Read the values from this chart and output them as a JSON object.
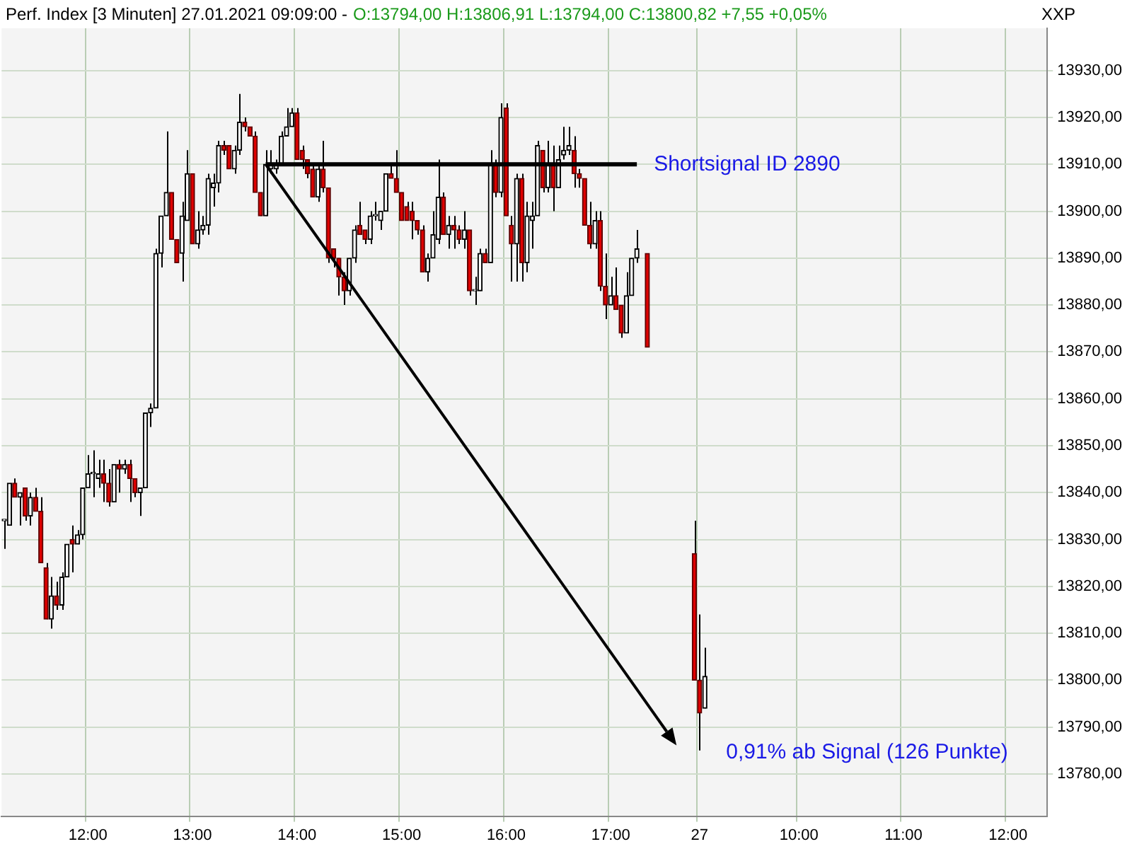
{
  "chart_data": {
    "type": "candlestick",
    "title": "Perf. Index [3 Minuten] 27.01.2021 09:09:00 -",
    "subtitle": "O:13794,00 H:13806,91 L:13794,00 C:13800,82 +7,55 +0,05%",
    "ylabel": "XXP",
    "categories": [
      null,
      null,
      null,
      null,
      null,
      null,
      null,
      null,
      null,
      null,
      null,
      null,
      null,
      null,
      null,
      null,
      "12:00",
      null,
      null,
      null,
      null,
      null,
      null,
      null,
      null,
      null,
      null,
      null,
      null,
      null,
      null,
      null,
      null,
      null,
      null,
      null,
      "13:00",
      null,
      null,
      null,
      null,
      null,
      null,
      null,
      null,
      null,
      null,
      null,
      null,
      null,
      null,
      null,
      null,
      null,
      null,
      null,
      "14:00",
      null,
      null,
      null,
      null,
      null,
      null,
      null,
      null,
      null,
      null,
      null,
      null,
      null,
      null,
      null,
      null,
      null,
      null,
      null,
      "15:00",
      null,
      null,
      null,
      null,
      null,
      null,
      null,
      null,
      null,
      null,
      null,
      null,
      null,
      null,
      null,
      null,
      null,
      null,
      null,
      "16:00",
      null,
      null,
      null,
      null,
      null,
      null,
      null,
      null,
      null,
      null,
      null,
      null,
      null,
      null,
      null,
      null,
      null,
      null,
      null,
      "17:00",
      null,
      null,
      null,
      null,
      null,
      null,
      null,
      null,
      null,
      null,
      null,
      null,
      null,
      null,
      null,
      null,
      "27",
      null,
      null,
      null,
      null,
      null,
      null,
      null,
      null,
      null,
      null,
      null,
      null,
      null,
      null,
      null,
      null,
      null,
      null,
      "10:00",
      null,
      null,
      null,
      null,
      null,
      null,
      null,
      null,
      null,
      null,
      null,
      null,
      null,
      null,
      null,
      null,
      null,
      null,
      null,
      "11:00",
      null,
      null,
      null,
      null,
      null,
      null,
      null,
      null,
      null,
      null,
      null,
      null,
      null,
      null,
      null,
      null,
      null,
      null,
      null,
      "12:00",
      null,
      null,
      null,
      null,
      null,
      null,
      null
    ],
    "ohlc": [
      [
        13834,
        13834,
        13828,
        13834
      ],
      [
        13833,
        13842,
        13833,
        13842
      ],
      [
        13842,
        13843,
        13839,
        13839
      ],
      [
        13839,
        13840,
        13833,
        13840
      ],
      [
        13841,
        13841,
        13834,
        13835
      ],
      [
        13835,
        13840,
        13833,
        13839
      ],
      [
        13839,
        13841,
        13836,
        13836
      ],
      [
        13836,
        13839,
        13825,
        13825
      ],
      [
        13824,
        13825,
        13813,
        13813
      ],
      [
        13813,
        13822,
        13811,
        13818
      ],
      [
        13818,
        13821,
        13815,
        13816
      ],
      [
        13816,
        13823,
        13815,
        13822
      ],
      [
        13822,
        13829,
        13822,
        13829
      ],
      [
        13830,
        13833,
        13823,
        13829
      ],
      [
        13829,
        13832,
        13829,
        13831
      ],
      [
        13831,
        13841,
        13830,
        13841
      ],
      [
        13841,
        13848,
        13841,
        13844
      ],
      [
        13844,
        13849,
        13839,
        13844
      ],
      [
        13843,
        13847,
        13841,
        13844
      ],
      [
        13844,
        13847,
        13838,
        13842
      ],
      [
        13842,
        13845,
        13837,
        13838
      ],
      [
        13838,
        13846,
        13838,
        13846
      ],
      [
        13846,
        13847,
        13840,
        13845
      ],
      [
        13845,
        13847,
        13844,
        13846
      ],
      [
        13846,
        13847,
        13838,
        13843
      ],
      [
        13843,
        13843,
        13839,
        13840
      ],
      [
        13840,
        13841,
        13835,
        13841
      ],
      [
        13841,
        13857,
        13841,
        13857
      ],
      [
        13857,
        13859,
        13854,
        13858
      ],
      [
        13858,
        13892,
        13858,
        13891
      ],
      [
        13891,
        13899,
        13888,
        13899
      ],
      [
        13899,
        13917,
        13899,
        13904
      ],
      [
        13904,
        13904,
        13894,
        13894
      ],
      [
        13894,
        13894,
        13889,
        13889
      ],
      [
        13891,
        13902,
        13885,
        13899
      ],
      [
        13898,
        13913,
        13898,
        13908
      ],
      [
        13908,
        13908,
        13893,
        13893
      ],
      [
        13893,
        13900,
        13892,
        13896
      ],
      [
        13896,
        13899,
        13895,
        13897
      ],
      [
        13897,
        13908,
        13895,
        13907
      ],
      [
        13905,
        13908,
        13901,
        13906
      ],
      [
        13906,
        13915,
        13904,
        13914
      ],
      [
        13914,
        13915,
        13912,
        13913
      ],
      [
        13914,
        13914,
        13909,
        13909
      ],
      [
        13909,
        13914,
        13908,
        13913
      ],
      [
        13913,
        13925,
        13912,
        13919
      ],
      [
        13919,
        13920,
        13917,
        13918
      ],
      [
        13918,
        13918,
        13916,
        13916
      ],
      [
        13916,
        13917,
        13904,
        13904
      ],
      [
        13904,
        13904,
        13899,
        13899
      ],
      [
        13899,
        13913,
        13899,
        13910
      ],
      [
        13909,
        13913,
        13908,
        13910
      ],
      [
        13909,
        13911,
        13908,
        13910
      ],
      [
        13910,
        13917,
        13910,
        13916
      ],
      [
        13916,
        13922,
        13916,
        13918
      ],
      [
        13918,
        13922,
        13918,
        13921
      ],
      [
        13921,
        13922,
        13911,
        13911
      ],
      [
        13913,
        13914,
        13909,
        13911
      ],
      [
        13911,
        13911,
        13907,
        13908
      ],
      [
        13909,
        13910,
        13903,
        13903
      ],
      [
        13903,
        13910,
        13902,
        13909
      ],
      [
        13909,
        13915,
        13904,
        13905
      ],
      [
        13905,
        13905,
        13889,
        13890
      ],
      [
        13892,
        13892,
        13888,
        13890
      ],
      [
        13890,
        13890,
        13882,
        13886
      ],
      [
        13886,
        13887,
        13880,
        13883
      ],
      [
        13883,
        13890,
        13882,
        13890
      ],
      [
        13890,
        13897,
        13889,
        13896
      ],
      [
        13897,
        13902,
        13895,
        13895
      ],
      [
        13896,
        13896,
        13893,
        13894
      ],
      [
        13894,
        13900,
        13893,
        13899
      ],
      [
        13899,
        13902,
        13898,
        13899
      ],
      [
        13898,
        13900,
        13896,
        13900
      ],
      [
        13900,
        13908,
        13900,
        13908
      ],
      [
        13908,
        13910,
        13907,
        13907
      ],
      [
        13907,
        13913,
        13904,
        13904
      ],
      [
        13904,
        13904,
        13898,
        13898
      ],
      [
        13901,
        13902,
        13898,
        13898
      ],
      [
        13900,
        13902,
        13894,
        13898
      ],
      [
        13898,
        13898,
        13895,
        13896
      ],
      [
        13896,
        13897,
        13887,
        13887
      ],
      [
        13887,
        13891,
        13885,
        13890
      ],
      [
        13890,
        13900,
        13890,
        13895
      ],
      [
        13894,
        13911,
        13893,
        13903
      ],
      [
        13903,
        13904,
        13895,
        13895
      ],
      [
        13895,
        13899,
        13892,
        13897
      ],
      [
        13897,
        13899,
        13892,
        13896
      ],
      [
        13896,
        13897,
        13893,
        13894
      ],
      [
        13894,
        13900,
        13892,
        13896
      ],
      [
        13896,
        13896,
        13882,
        13883
      ],
      [
        13883,
        13886,
        13880,
        13883
      ],
      [
        13883,
        13892,
        13883,
        13891
      ],
      [
        13891,
        13892,
        13889,
        13889
      ],
      [
        13889,
        13913,
        13889,
        13910
      ],
      [
        13910,
        13911,
        13903,
        13904
      ],
      [
        13904,
        13923,
        13903,
        13920
      ],
      [
        13922,
        13923,
        13899,
        13899
      ],
      [
        13897,
        13899,
        13885,
        13893
      ],
      [
        13893,
        13908,
        13885,
        13907
      ],
      [
        13907,
        13908,
        13885,
        13889
      ],
      [
        13889,
        13902,
        13887,
        13899
      ],
      [
        13898,
        13902,
        13892,
        13899
      ],
      [
        13899,
        13915,
        13899,
        13914
      ],
      [
        13913,
        13913,
        13904,
        13905
      ],
      [
        13905,
        13915,
        13904,
        13910
      ],
      [
        13910,
        13914,
        13900,
        13905
      ],
      [
        13905,
        13914,
        13905,
        13911
      ],
      [
        13912,
        13918,
        13911,
        13913
      ],
      [
        13913,
        13918,
        13912,
        13914
      ],
      [
        13913,
        13916,
        13905,
        13908
      ],
      [
        13908,
        13909,
        13905,
        13907
      ],
      [
        13907,
        13907,
        13897,
        13897
      ],
      [
        13897,
        13902,
        13892,
        13893
      ],
      [
        13893,
        13900,
        13892,
        13898
      ],
      [
        13898,
        13900,
        13883,
        13884
      ],
      [
        13884,
        13891,
        13877,
        13880
      ],
      [
        13880,
        13886,
        13880,
        13882
      ],
      [
        13882,
        13888,
        13879,
        13879
      ],
      [
        13880,
        13880,
        13873,
        13874
      ],
      [
        13874,
        13887,
        13874,
        13882
      ],
      [
        13882,
        13890,
        13882,
        13890
      ],
      [
        13890,
        13896,
        13889,
        13892
      ],
      null,
      [
        13891,
        13891,
        13871,
        13871
      ],
      null,
      null,
      null,
      null,
      null,
      null,
      null,
      null,
      [
        13827,
        13834,
        13800,
        13800
      ],
      [
        13800,
        13814,
        13785,
        13793
      ],
      [
        13794,
        13806.91,
        13794,
        13800.82
      ],
      null,
      null,
      null,
      null,
      null,
      null,
      null,
      null,
      null,
      null,
      null,
      null,
      null,
      null,
      null,
      null,
      null,
      null,
      null,
      null,
      null,
      null,
      null,
      null,
      null,
      null,
      null,
      null,
      null,
      null,
      null,
      null,
      null,
      null,
      null,
      null,
      null,
      null,
      null,
      null,
      null,
      null,
      null,
      null,
      null,
      null,
      null,
      null,
      null,
      null,
      null,
      null,
      null,
      null,
      null,
      null,
      null,
      null,
      null,
      null,
      null,
      null,
      null,
      null,
      null
    ],
    "series": [
      {
        "type": "line",
        "name": "Shortsignal ID 2890",
        "color": "#000000",
        "values": [
          null,
          null,
          null,
          null,
          null,
          null,
          null,
          null,
          null,
          null,
          null,
          null,
          null,
          null,
          null,
          null,
          null,
          null,
          null,
          null,
          null,
          null,
          null,
          null,
          null,
          null,
          null,
          null,
          null,
          null,
          null,
          null,
          null,
          null,
          null,
          null,
          null,
          null,
          null,
          null,
          null,
          null,
          null,
          null,
          null,
          null,
          null,
          null,
          null,
          null,
          13910,
          13910,
          13910,
          13910,
          13910,
          13910,
          13910,
          13910,
          13910,
          13910,
          13910,
          13910,
          13910,
          13910,
          13910,
          13910,
          13910,
          13910,
          13910,
          13910,
          13910,
          13910,
          13910,
          13910,
          13910,
          13910,
          13910,
          13910,
          13910,
          13910,
          13910,
          13910,
          13910,
          13910,
          13910,
          13910,
          13910,
          13910,
          13910,
          13910,
          13910,
          13910,
          13910,
          13910,
          13910,
          13910,
          13910,
          13910,
          13910,
          13910,
          13910,
          13910,
          13910,
          13910,
          13910,
          13910,
          13910,
          13910,
          13910,
          13910,
          13910,
          13910,
          13910,
          13910,
          13910,
          13910,
          13910,
          13910,
          13910,
          13910,
          13910,
          13910,
          null,
          null,
          null,
          null,
          null,
          null,
          null,
          null,
          null,
          null,
          null,
          null,
          null,
          null,
          null,
          null,
          null,
          null,
          null,
          null,
          null,
          null,
          null,
          null,
          null,
          null,
          null,
          null,
          null,
          null,
          null,
          null,
          null,
          null,
          null,
          null,
          null,
          null,
          null,
          null,
          null,
          null,
          null,
          null,
          null,
          null,
          null,
          null,
          null,
          null,
          null,
          null,
          null,
          null,
          null,
          null,
          null,
          null,
          null,
          null,
          null,
          null,
          null,
          null,
          null,
          null,
          null,
          null,
          null,
          null,
          null,
          null,
          null,
          null,
          null,
          null,
          null,
          null
        ]
      }
    ],
    "ylim": [
      13771,
      13939
    ],
    "yticks": [
      {
        "value": 13780,
        "label": "13780,00"
      },
      {
        "value": 13790,
        "label": "13790,00"
      },
      {
        "value": 13800,
        "label": "13800,00"
      },
      {
        "value": 13810,
        "label": "13810,00"
      },
      {
        "value": 13820,
        "label": "13820,00"
      },
      {
        "value": 13830,
        "label": "13830,00"
      },
      {
        "value": 13840,
        "label": "13840,00"
      },
      {
        "value": 13850,
        "label": "13850,00"
      },
      {
        "value": 13860,
        "label": "13860,00"
      },
      {
        "value": 13870,
        "label": "13870,00"
      },
      {
        "value": 13880,
        "label": "13880,00"
      },
      {
        "value": 13890,
        "label": "13890,00"
      },
      {
        "value": 13900,
        "label": "13900,00"
      },
      {
        "value": 13910,
        "label": "13910,00"
      },
      {
        "value": 13920,
        "label": "13920,00"
      },
      {
        "value": 13930,
        "label": "13930,00"
      }
    ],
    "grid": true,
    "annotations": [
      "0,91% ab Signal (126 Punkte)"
    ]
  }
}
